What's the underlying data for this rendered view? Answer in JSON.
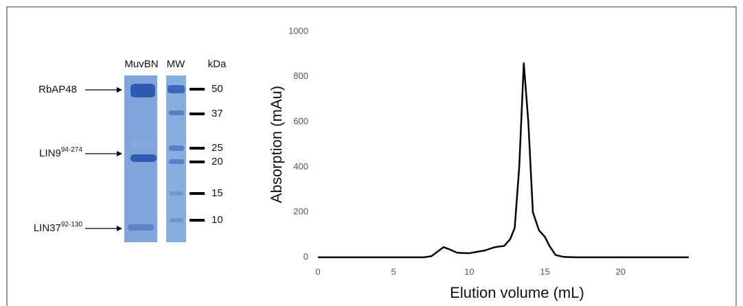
{
  "chart_data": {
    "type": "line",
    "x_label": "Elution volume (mL)",
    "y_label": "Absorption (mAu)",
    "x": [
      0,
      7,
      7.5,
      8,
      8.3,
      8.7,
      9.2,
      10,
      11,
      11.7,
      12,
      12.3,
      12.7,
      13,
      13.3,
      13.6,
      13.9,
      14.2,
      14.6,
      15,
      15.3,
      15.7,
      16.2,
      17,
      24.5
    ],
    "series": [
      {
        "color": "#000000",
        "values": [
          0,
          0,
          5,
          30,
          45,
          35,
          20,
          18,
          30,
          45,
          48,
          50,
          80,
          130,
          400,
          860,
          600,
          200,
          120,
          90,
          50,
          10,
          2,
          0,
          0
        ]
      }
    ],
    "xlim": [
      0,
      24.5
    ],
    "xticks": [
      0,
      5,
      10,
      15,
      20
    ],
    "ylim": [
      0,
      1000
    ],
    "yticks": [
      0,
      200,
      400,
      600,
      800,
      1000
    ],
    "grid": false
  },
  "gel": {
    "lanes": [
      "MuvBN",
      "MW"
    ],
    "unit": "kDa",
    "bands": [
      {
        "name": "RbAP48"
      },
      {
        "name": "LIN9",
        "superscript": "94-274"
      },
      {
        "name": "LIN37",
        "superscript": "92-130"
      }
    ],
    "markers": [
      50,
      37,
      25,
      20,
      15,
      10
    ]
  }
}
